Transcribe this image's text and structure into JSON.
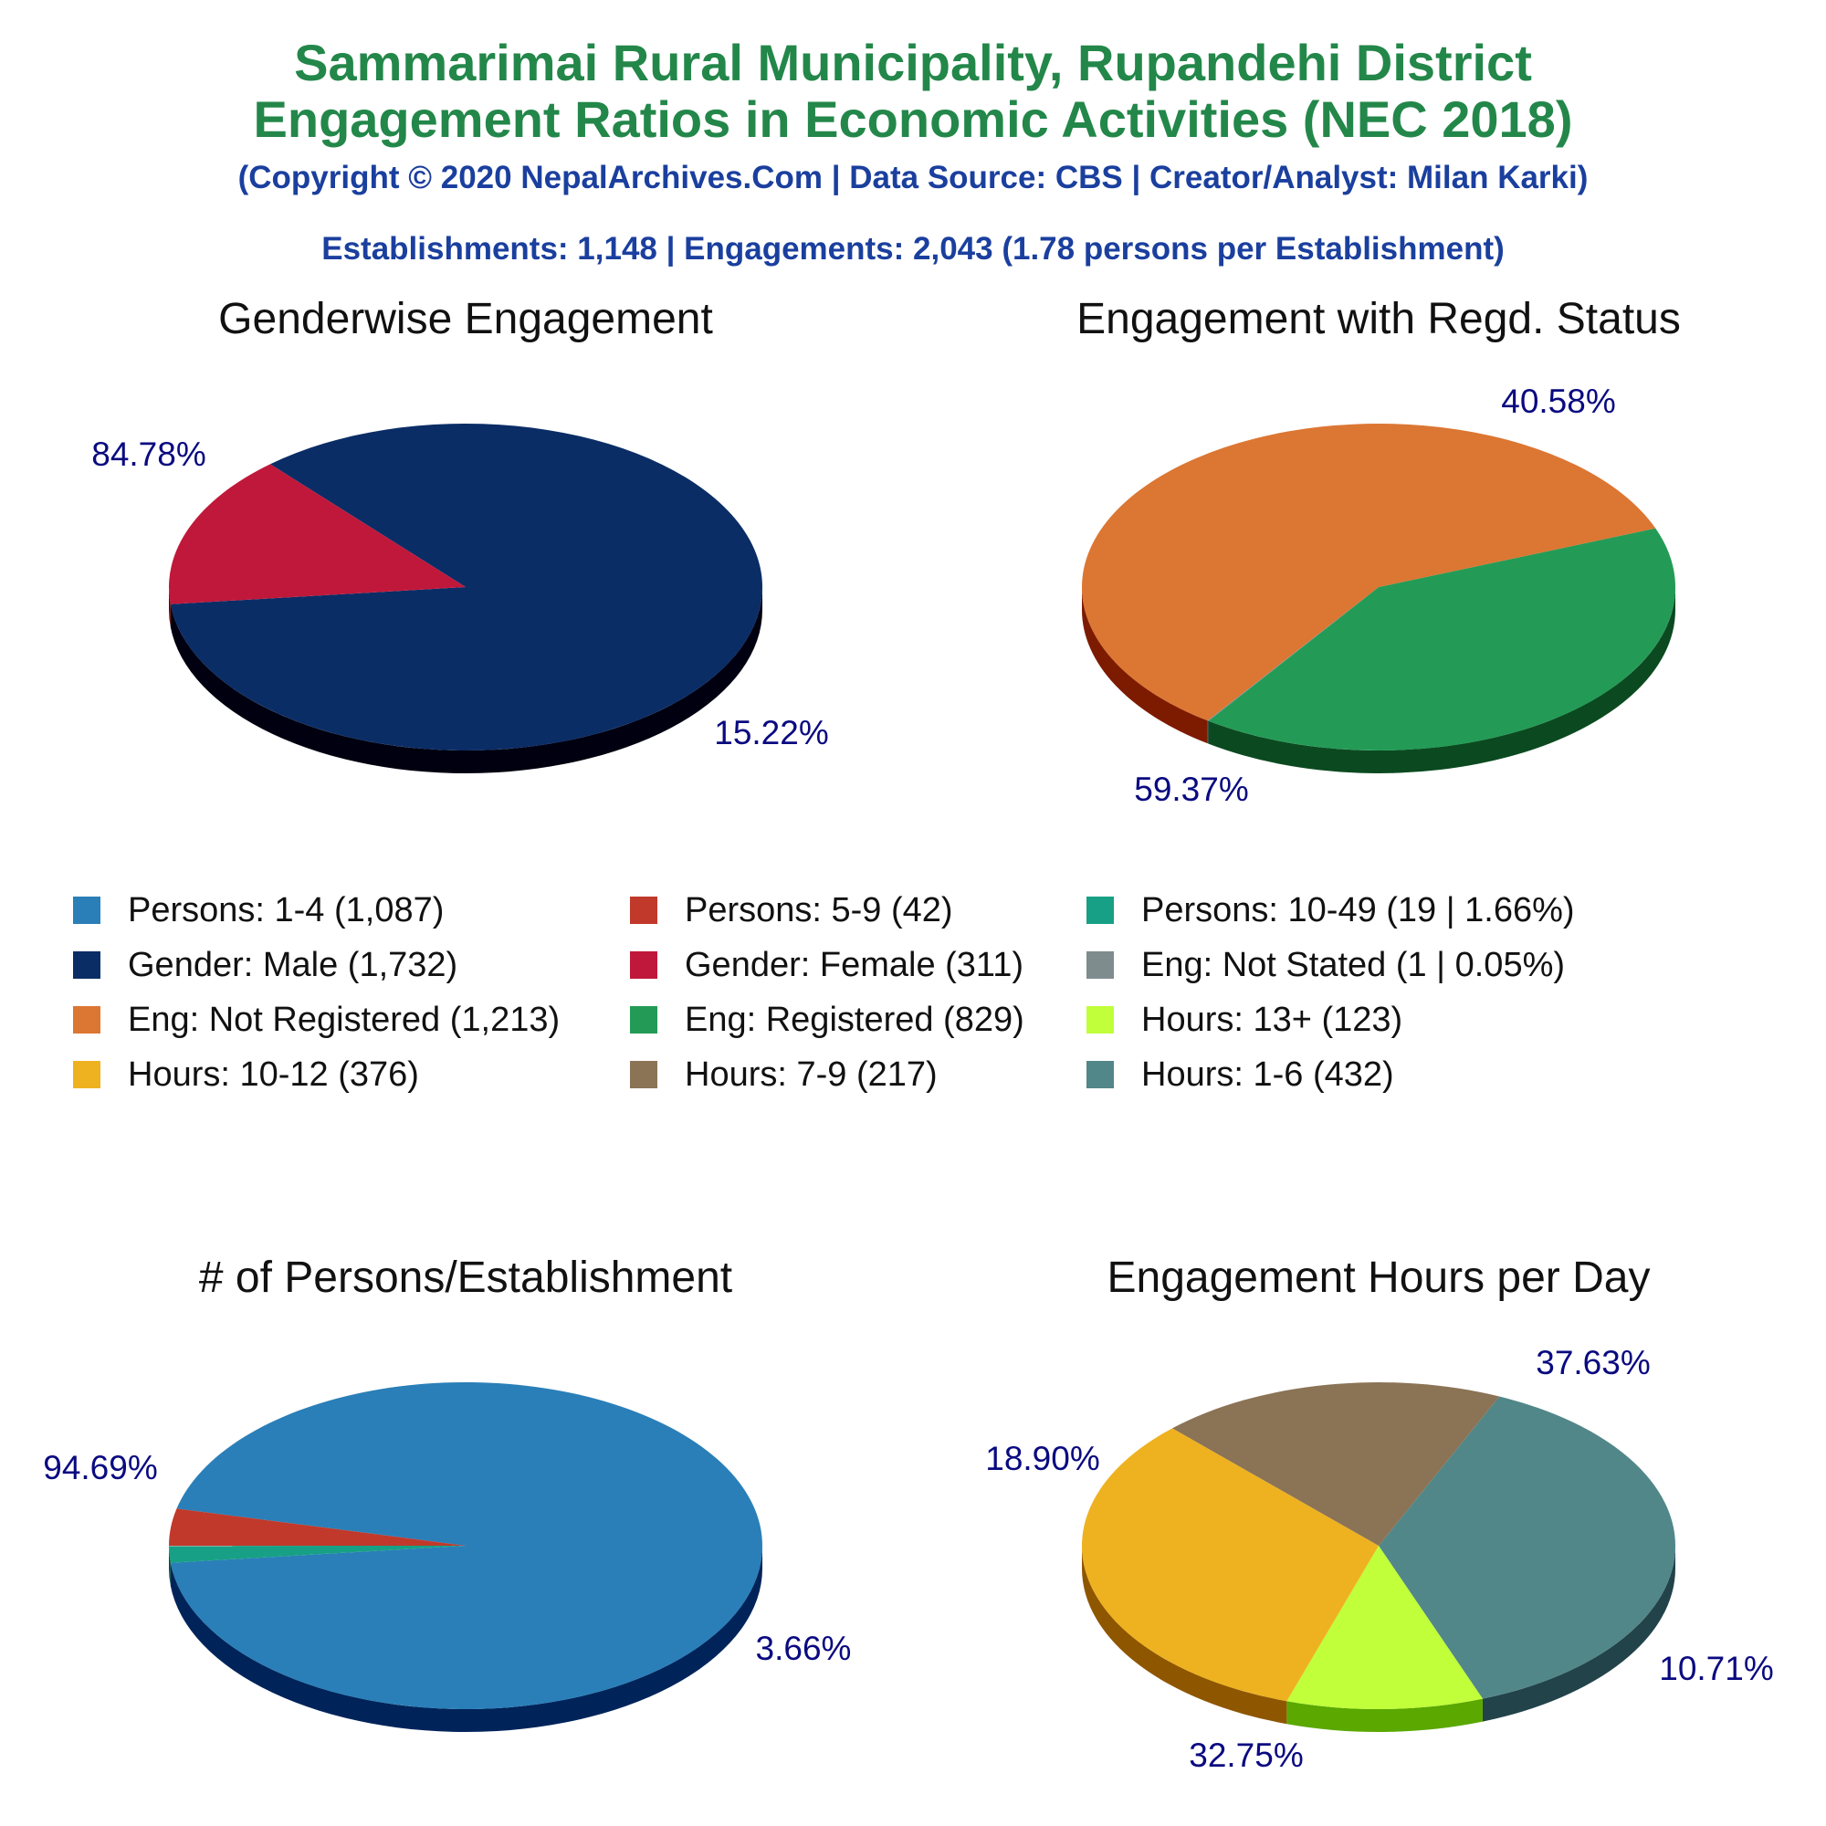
{
  "header": {
    "title_line1": "Sammarimai Rural Municipality, Rupandehi District",
    "title_line2": "Engagement Ratios in Economic Activities (NEC 2018)",
    "copyright": "(Copyright © 2020 NepalArchives.Com | Data Source: CBS | Creator/Analyst: Milan Karki)",
    "summary": "Establishments: 1,148 | Engagements: 2,043 (1.78 persons per Establishment)"
  },
  "legend": [
    {
      "label": "Persons: 1-4 (1,087)",
      "color": "#2a7fb8"
    },
    {
      "label": "Persons: 5-9 (42)",
      "color": "#c0392b"
    },
    {
      "label": "Persons: 10-49 (19 | 1.66%)",
      "color": "#17a085"
    },
    {
      "label": "Gender: Male (1,732)",
      "color": "#0b2d66"
    },
    {
      "label": "Gender: Female (311)",
      "color": "#c0183a"
    },
    {
      "label": "Eng: Not Stated (1 | 0.05%)",
      "color": "#7f8c8d"
    },
    {
      "label": "Eng: Not Registered (1,213)",
      "color": "#dc7633"
    },
    {
      "label": "Eng: Registered (829)",
      "color": "#239b56"
    },
    {
      "label": "Hours: 13+ (123)",
      "color": "#c0ff3a"
    },
    {
      "label": "Hours: 10-12 (376)",
      "color": "#eeb220"
    },
    {
      "label": "Hours: 7-9 (217)",
      "color": "#8b7355"
    },
    {
      "label": "Hours: 1-6 (432)",
      "color": "#528789"
    }
  ],
  "chart_data": [
    {
      "type": "pie",
      "title": "Genderwise Engagement",
      "slices": [
        {
          "name": "Male",
          "value": 1732,
          "percent_label": "84.78%",
          "color": "#0b2d66",
          "side_color": "#000010"
        },
        {
          "name": "Female",
          "value": 311,
          "percent_label": "15.22%",
          "color": "#c0183a",
          "side_color": "#6b0000"
        }
      ]
    },
    {
      "type": "pie",
      "title": "Engagement with Regd. Status",
      "slices": [
        {
          "name": "Registered",
          "value": 829,
          "percent_label": "40.58%",
          "color": "#239b56",
          "side_color": "#0b4a20"
        },
        {
          "name": "Not Registered",
          "value": 1213,
          "percent_label": "59.37%",
          "color": "#dc7633",
          "side_color": "#7d1b00"
        },
        {
          "name": "Not Stated",
          "value": 1,
          "percent_label": "",
          "color": "#7f8c8d",
          "side_color": "#3d4444"
        }
      ]
    },
    {
      "type": "pie",
      "title": "# of Persons/Establishment",
      "slices": [
        {
          "name": "Persons: 1-4",
          "value": 1087,
          "percent_label": "94.69%",
          "color": "#2a7fb8",
          "side_color": "#00245a"
        },
        {
          "name": "Persons: 5-9",
          "value": 42,
          "percent_label": "3.66%",
          "color": "#c0392b",
          "side_color": "#6b0000"
        },
        {
          "name": "Persons: 10-49",
          "value": 19,
          "percent_label": "",
          "color": "#17a085",
          "side_color": "#004a3a"
        }
      ]
    },
    {
      "type": "pie",
      "title": "Engagement Hours per Day",
      "slices": [
        {
          "name": "Hours: 1-6",
          "value": 432,
          "percent_label": "37.63%",
          "color": "#528789",
          "side_color": "#22434a"
        },
        {
          "name": "Hours: 13+",
          "value": 123,
          "percent_label": "10.71%",
          "color": "#c0ff3a",
          "side_color": "#5aa800"
        },
        {
          "name": "Hours: 10-12",
          "value": 376,
          "percent_label": "32.75%",
          "color": "#eeb220",
          "side_color": "#8f5600"
        },
        {
          "name": "Hours: 7-9",
          "value": 217,
          "percent_label": "18.90%",
          "color": "#8b7355",
          "side_color": "#3e2a00"
        }
      ]
    }
  ]
}
